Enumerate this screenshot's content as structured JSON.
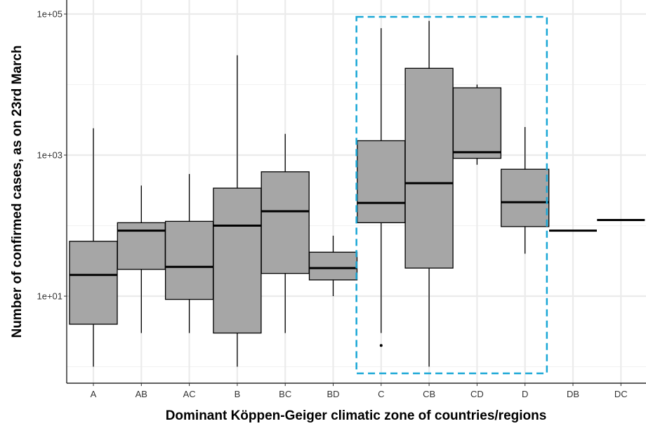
{
  "chart_data": {
    "type": "box",
    "xlabel": "Dominant Köppen-Geiger climatic zone of countries/regions",
    "ylabel": "Number of confirmed cases, as on 23rd March",
    "y_scale": "log10",
    "ylim": [
      0.6,
      110000
    ],
    "y_ticks": [
      10,
      1000,
      100000
    ],
    "y_tick_labels": [
      "1e+01",
      "1e+03",
      "1e+05"
    ],
    "grid": true,
    "categories": [
      "A",
      "AB",
      "AC",
      "B",
      "BC",
      "BD",
      "C",
      "CB",
      "CD",
      "D",
      "DB",
      "DC"
    ],
    "boxes": [
      {
        "category": "A",
        "lower_whisker": 1,
        "q1": 4,
        "median": 20,
        "q3": 60,
        "upper_whisker": 2400
      },
      {
        "category": "AB",
        "lower_whisker": 3,
        "q1": 24,
        "median": 85,
        "q3": 110,
        "upper_whisker": 370
      },
      {
        "category": "AC",
        "lower_whisker": 3,
        "q1": 9,
        "median": 26,
        "q3": 115,
        "upper_whisker": 540
      },
      {
        "category": "B",
        "lower_whisker": 1,
        "q1": 3,
        "median": 100,
        "q3": 340,
        "upper_whisker": 26000
      },
      {
        "category": "BC",
        "lower_whisker": 3,
        "q1": 21,
        "median": 160,
        "q3": 580,
        "upper_whisker": 2000
      },
      {
        "category": "BD",
        "lower_whisker": 10,
        "q1": 17,
        "median": 25,
        "q3": 42,
        "upper_whisker": 72
      },
      {
        "category": "C",
        "lower_whisker": 3,
        "q1": 110,
        "median": 210,
        "q3": 1600,
        "upper_whisker": 63000,
        "outliers": [
          2
        ]
      },
      {
        "category": "CB",
        "lower_whisker": 1,
        "q1": 25,
        "median": 400,
        "q3": 17000,
        "upper_whisker": 80000
      },
      {
        "category": "CD",
        "lower_whisker": 730,
        "q1": 900,
        "median": 1100,
        "q3": 9000,
        "upper_whisker": 10000
      },
      {
        "category": "D",
        "lower_whisker": 40,
        "q1": 97,
        "median": 215,
        "q3": 630,
        "upper_whisker": 2500
      },
      {
        "category": "DB",
        "lower_whisker": 85,
        "q1": 85,
        "median": 85,
        "q3": 85,
        "upper_whisker": 85
      },
      {
        "category": "DC",
        "lower_whisker": 120,
        "q1": 120,
        "median": 120,
        "q3": 120,
        "upper_whisker": 120
      }
    ],
    "highlight": {
      "from_category": "C",
      "to_category": "D",
      "color": "#1aa7d6"
    },
    "box_fill": "#a6a6a6"
  }
}
